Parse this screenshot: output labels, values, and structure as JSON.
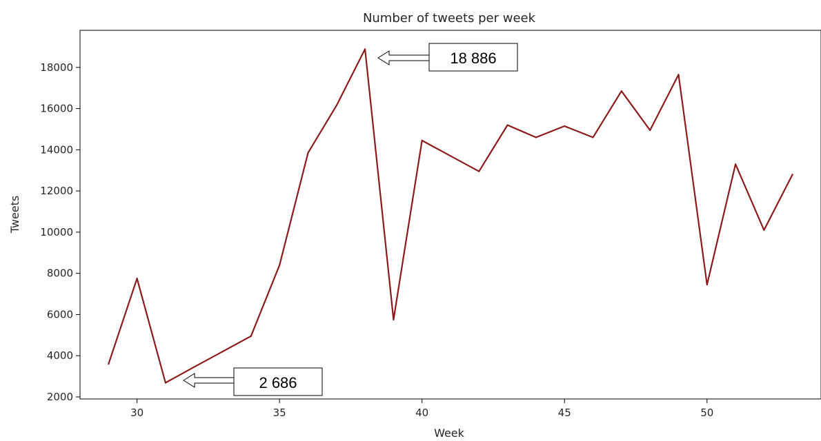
{
  "chart_data": {
    "type": "line",
    "title": "Number of tweets per week",
    "xlabel": "Week",
    "ylabel": "Tweets",
    "xlim": [
      28,
      54
    ],
    "ylim": [
      1900,
      19800
    ],
    "xticks": [
      30,
      35,
      40,
      45,
      50
    ],
    "yticks": [
      2000,
      4000,
      6000,
      8000,
      10000,
      12000,
      14000,
      16000,
      18000
    ],
    "grid": false,
    "line_color": "#8b1a1a",
    "series": [
      {
        "x": [
          29,
          30,
          31,
          32,
          33,
          34,
          35,
          36,
          37,
          38,
          39,
          40,
          41,
          42,
          43,
          44,
          45,
          46,
          47,
          48,
          49,
          50,
          51,
          52,
          53
        ],
        "values": [
          3600,
          7750,
          2686,
          3450,
          4200,
          4950,
          8400,
          13850,
          16150,
          18886,
          5750,
          14450,
          13700,
          12950,
          15200,
          14600,
          15150,
          14600,
          16850,
          14950,
          17650,
          7450,
          13300,
          10100,
          12800
        ]
      }
    ],
    "annotations": [
      {
        "label": "18 886",
        "x": 38,
        "y": 18886
      },
      {
        "label": "2 686",
        "x": 31,
        "y": 2686
      }
    ]
  }
}
